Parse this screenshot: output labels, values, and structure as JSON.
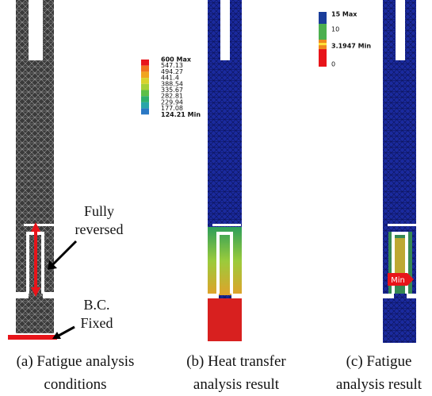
{
  "panels": [
    {
      "caption": [
        "(a) Fatigue analysis",
        "conditions"
      ],
      "annotations": [
        "Fully",
        "reversed",
        "B.C.",
        "Fixed"
      ]
    },
    {
      "caption": [
        "(b) Heat transfer",
        "analysis result"
      ],
      "legend": [
        "600 Max",
        "547.13",
        "494.27",
        "441.4",
        "388.54",
        "335.67",
        "282.81",
        "229.94",
        "177.08",
        "124.21 Min"
      ]
    },
    {
      "caption": [
        "(c) Fatigue",
        "analysis result"
      ],
      "legend": [
        "15 Max",
        "10",
        "3.1947 Min",
        "0"
      ],
      "marker": "Min"
    }
  ]
}
